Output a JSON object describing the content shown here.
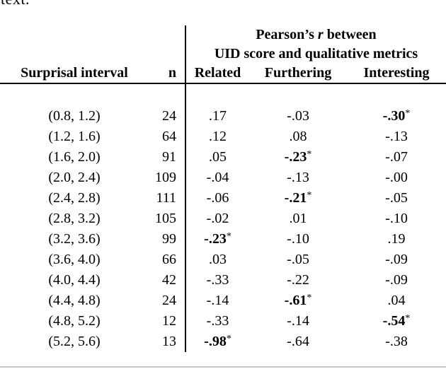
{
  "page": {
    "top_fragment": "text.",
    "background": "#ffffff",
    "text_color": "#000000",
    "rule_color_dark": "#000000",
    "rule_color_light": "#c6c6c6"
  },
  "table": {
    "header": {
      "group_title_prefix": "Pearson’s ",
      "group_title_italic": "r",
      "group_title_suffix": " between",
      "group_subtitle": "UID score and qualitative metrics",
      "columns": [
        "Surprisal interval",
        "n",
        "Related",
        "Furthering",
        "Interesting"
      ]
    },
    "significance_marker": "*",
    "rows": [
      {
        "interval": "(0.8, 1.2)",
        "n": "24",
        "related": {
          "v": ".17"
        },
        "furthering": {
          "v": "-.03"
        },
        "interesting": {
          "v": "-.30",
          "bold": true,
          "star": true
        }
      },
      {
        "interval": "(1.2, 1.6)",
        "n": "64",
        "related": {
          "v": ".12"
        },
        "furthering": {
          "v": ".08"
        },
        "interesting": {
          "v": "-.13"
        }
      },
      {
        "interval": "(1.6, 2.0)",
        "n": "91",
        "related": {
          "v": ".05"
        },
        "furthering": {
          "v": "-.23",
          "bold": true,
          "star": true
        },
        "interesting": {
          "v": "-.07"
        }
      },
      {
        "interval": "(2.0, 2.4)",
        "n": "109",
        "related": {
          "v": "-.04"
        },
        "furthering": {
          "v": "-.13"
        },
        "interesting": {
          "v": "-.00"
        }
      },
      {
        "interval": "(2.4, 2.8)",
        "n": "111",
        "related": {
          "v": "-.06"
        },
        "furthering": {
          "v": "-.21",
          "bold": true,
          "star": true
        },
        "interesting": {
          "v": "-.05"
        }
      },
      {
        "interval": "(2.8, 3.2)",
        "n": "105",
        "related": {
          "v": "-.02"
        },
        "furthering": {
          "v": ".01"
        },
        "interesting": {
          "v": "-.10"
        }
      },
      {
        "interval": "(3.2, 3.6)",
        "n": "99",
        "related": {
          "v": "-.23",
          "bold": true,
          "star": true
        },
        "furthering": {
          "v": "-.10"
        },
        "interesting": {
          "v": ".19"
        }
      },
      {
        "interval": "(3.6, 4.0)",
        "n": "66",
        "related": {
          "v": ".03"
        },
        "furthering": {
          "v": "-.05"
        },
        "interesting": {
          "v": "-.09"
        }
      },
      {
        "interval": "(4.0, 4.4)",
        "n": "42",
        "related": {
          "v": "-.33"
        },
        "furthering": {
          "v": "-.22"
        },
        "interesting": {
          "v": "-.09"
        }
      },
      {
        "interval": "(4.4, 4.8)",
        "n": "24",
        "related": {
          "v": "-.14"
        },
        "furthering": {
          "v": "-.61",
          "bold": true,
          "star": true
        },
        "interesting": {
          "v": ".04"
        }
      },
      {
        "interval": "(4.8, 5.2)",
        "n": "12",
        "related": {
          "v": "-.33"
        },
        "furthering": {
          "v": "-.14"
        },
        "interesting": {
          "v": "-.54",
          "bold": true,
          "star": true
        }
      },
      {
        "interval": "(5.2, 5.6)",
        "n": "13",
        "related": {
          "v": "-.98",
          "bold": true,
          "star": true
        },
        "furthering": {
          "v": "-.64"
        },
        "interesting": {
          "v": "-.38"
        }
      }
    ]
  }
}
